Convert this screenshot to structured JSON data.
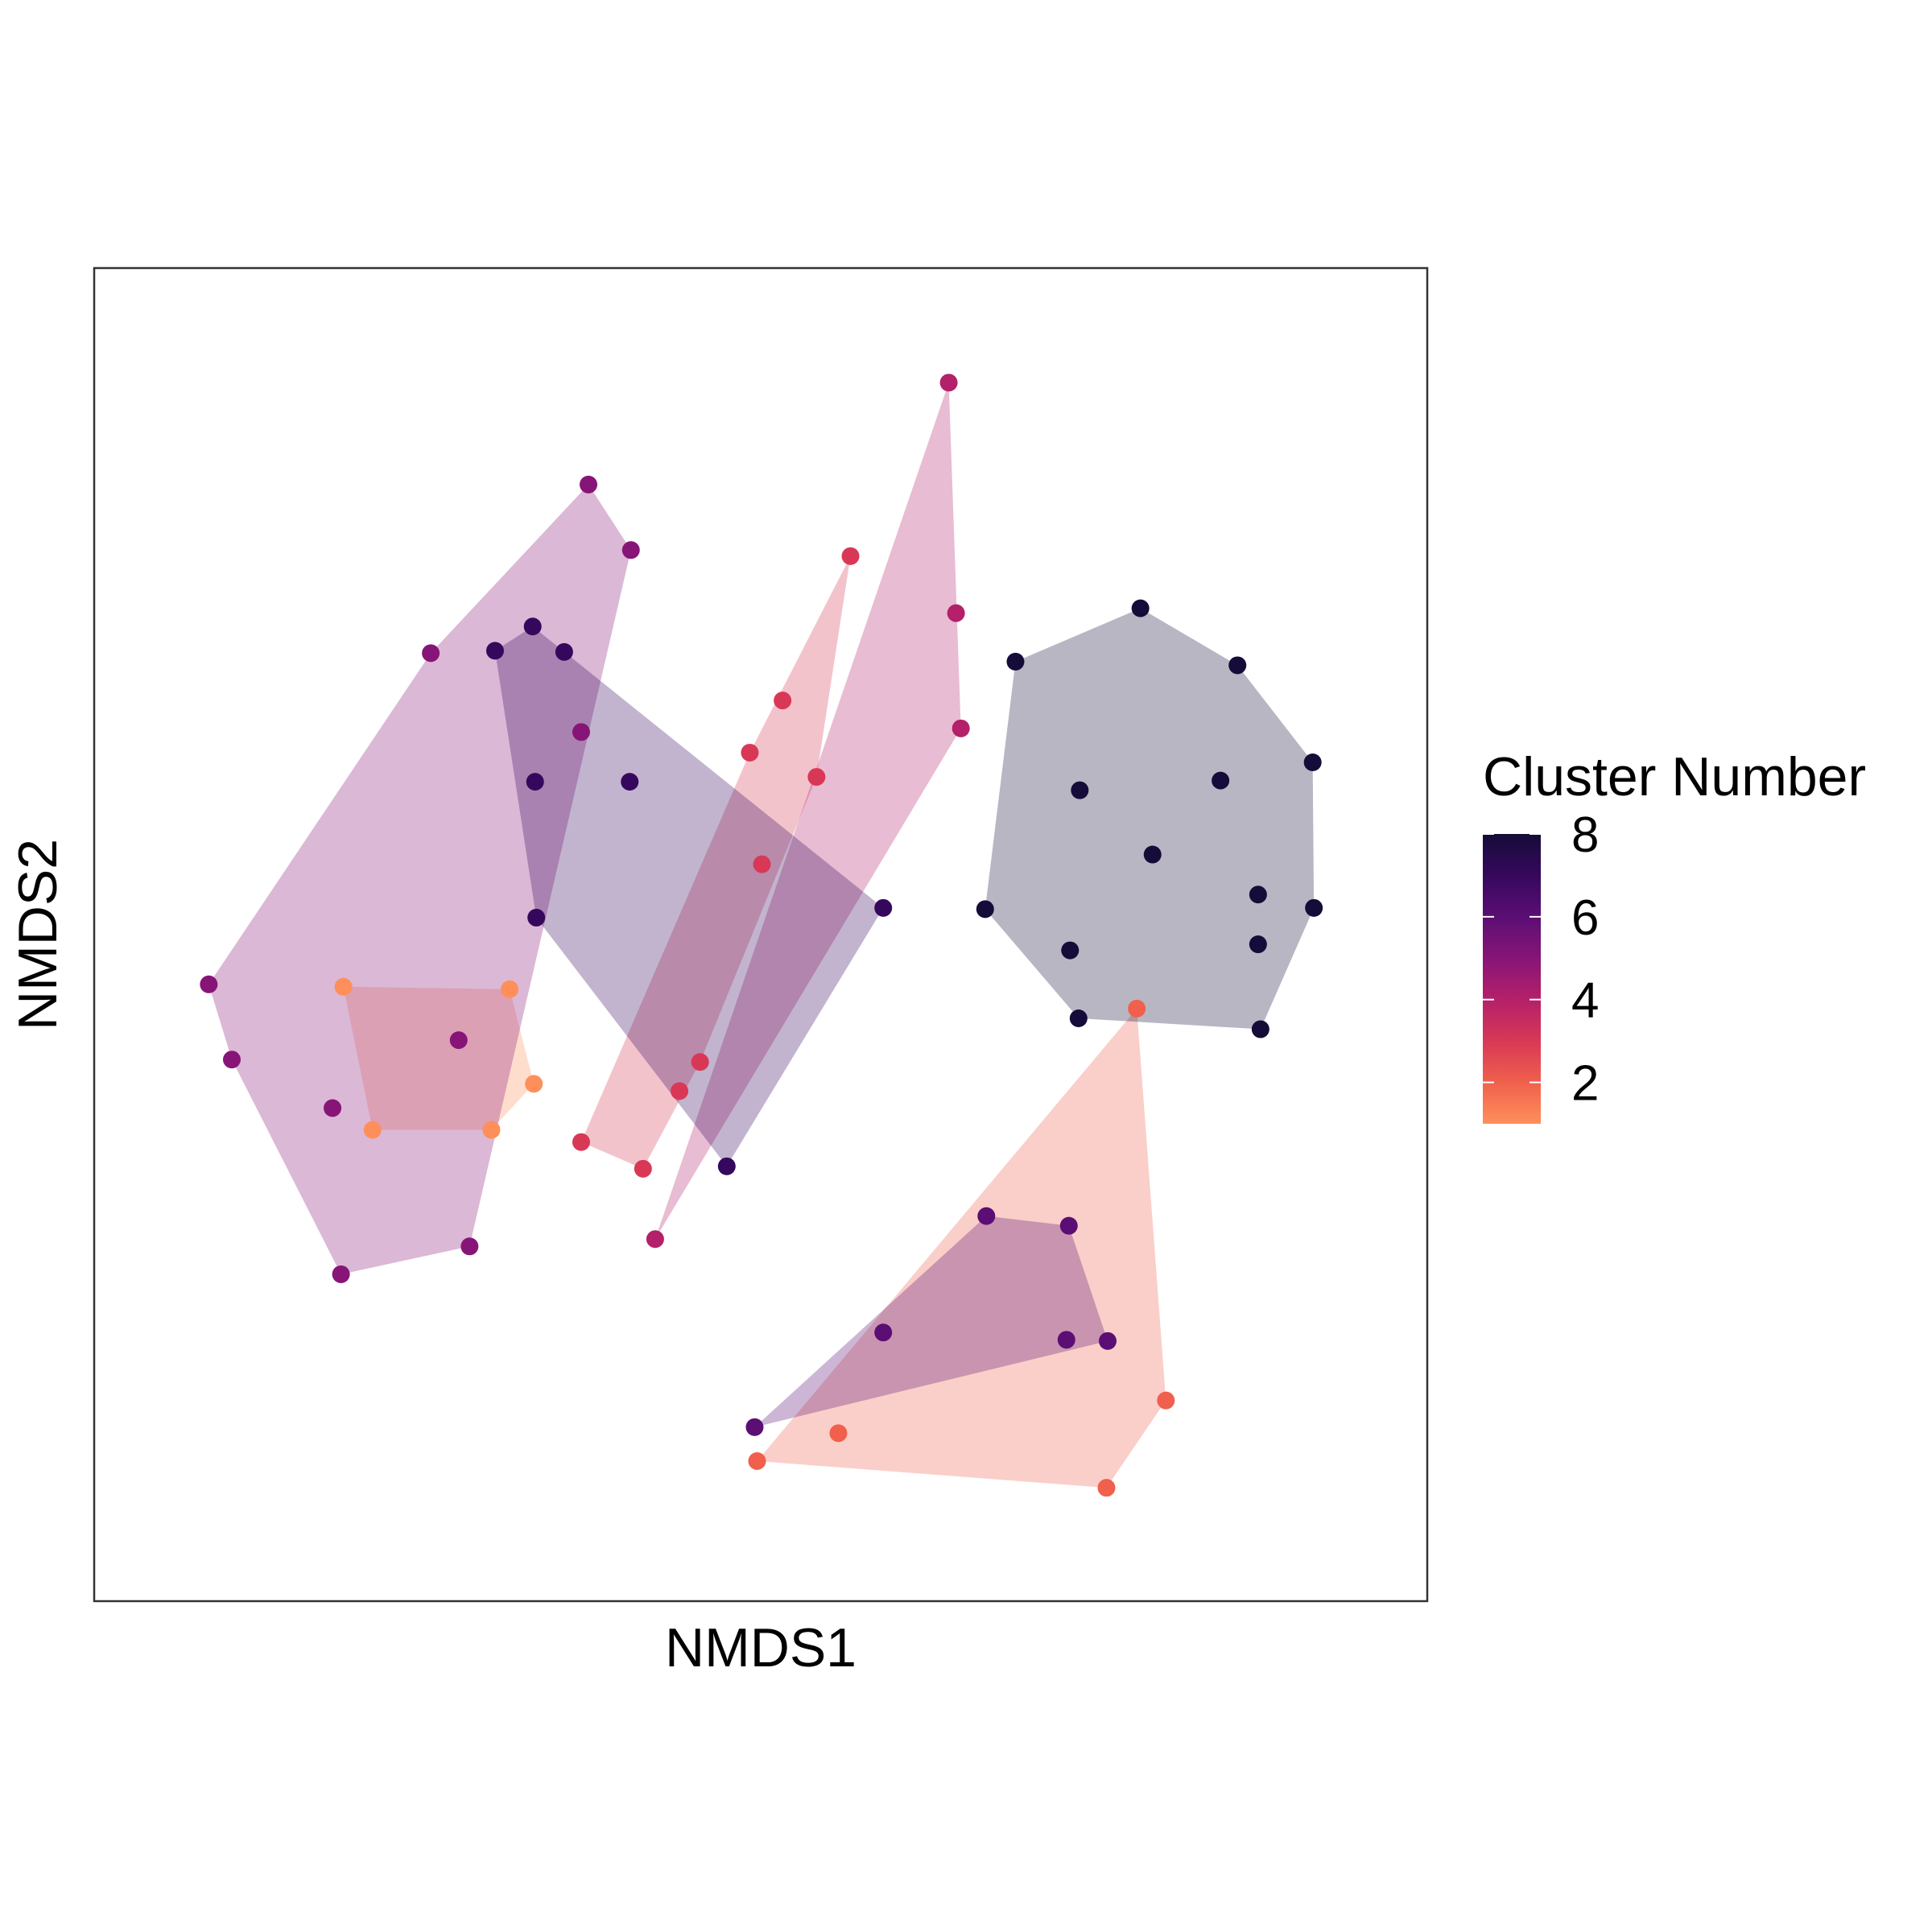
{
  "chart_data": {
    "type": "scatter",
    "xlabel": "NMDS1",
    "ylabel": "NMDS2",
    "xlim": [
      0,
      1000
    ],
    "ylim": [
      0,
      1000
    ],
    "axis_ticks_shown": false,
    "grid": false,
    "hulls": true,
    "legend": {
      "title": "Cluster Number",
      "placement": "right",
      "type": "colorbar",
      "range": [
        1,
        8
      ],
      "ticks": [
        "2",
        "4",
        "6",
        "8"
      ],
      "tick_values": [
        2,
        4,
        6,
        8
      ],
      "colors": [
        "#fe8f5b",
        "#f0604d",
        "#d83856",
        "#b42069",
        "#871577",
        "#5b0e74",
        "#36085d",
        "#150c39"
      ]
    },
    "series": [
      {
        "cluster": 1,
        "color": "#fe8f5b",
        "points": [
          [
            156,
            457
          ],
          [
            293,
            455
          ],
          [
            180,
            339
          ],
          [
            278,
            339
          ],
          [
            313,
            377
          ]
        ]
      },
      {
        "cluster": 2,
        "color": "#f0604d",
        "points": [
          [
            810,
            439
          ],
          [
            834,
            116
          ],
          [
            785,
            44
          ],
          [
            497,
            66
          ],
          [
            564,
            89
          ]
        ]
      },
      {
        "cluster": 3,
        "color": "#d83856",
        "points": [
          [
            352,
            329
          ],
          [
            403,
            307
          ],
          [
            433,
            371
          ],
          [
            450,
            395
          ],
          [
            501,
            558
          ],
          [
            546,
            630
          ],
          [
            574,
            812
          ],
          [
            518,
            693
          ],
          [
            491,
            650
          ]
        ]
      },
      {
        "cluster": 4,
        "color": "#b42069",
        "points": [
          [
            413,
            249
          ],
          [
            655,
            955
          ],
          [
            661,
            765
          ],
          [
            665,
            670
          ]
        ]
      },
      {
        "cluster": 5,
        "color": "#871577",
        "points": [
          [
            45,
            459
          ],
          [
            64,
            397
          ],
          [
            154,
            220
          ],
          [
            260,
            243
          ],
          [
            358,
            871
          ],
          [
            393,
            817
          ],
          [
            228,
            732
          ],
          [
            352,
            667
          ],
          [
            147,
            357
          ],
          [
            251,
            413
          ]
        ]
      },
      {
        "cluster": 6,
        "color": "#5b0e74",
        "points": [
          [
            495,
            94
          ],
          [
            601,
            172
          ],
          [
            686,
            268
          ],
          [
            754,
            260
          ],
          [
            752,
            166
          ],
          [
            786,
            165
          ]
        ]
      },
      {
        "cluster": 7,
        "color": "#36085d",
        "points": [
          [
            314,
            626
          ],
          [
            281,
            734
          ],
          [
            312,
            754
          ],
          [
            338,
            733
          ],
          [
            392,
            626
          ],
          [
            315,
            514
          ],
          [
            472,
            309
          ],
          [
            601,
            522
          ]
        ]
      },
      {
        "cluster": 8,
        "color": "#150c39",
        "points": [
          [
            685,
            521
          ],
          [
            710,
            725
          ],
          [
            813,
            769
          ],
          [
            893,
            722
          ],
          [
            955,
            642
          ],
          [
            956,
            522
          ],
          [
            912,
            422
          ],
          [
            762,
            431
          ],
          [
            755,
            487
          ],
          [
            763,
            619
          ],
          [
            879,
            627
          ],
          [
            823,
            566
          ],
          [
            910,
            533
          ],
          [
            910,
            492
          ]
        ]
      }
    ]
  }
}
